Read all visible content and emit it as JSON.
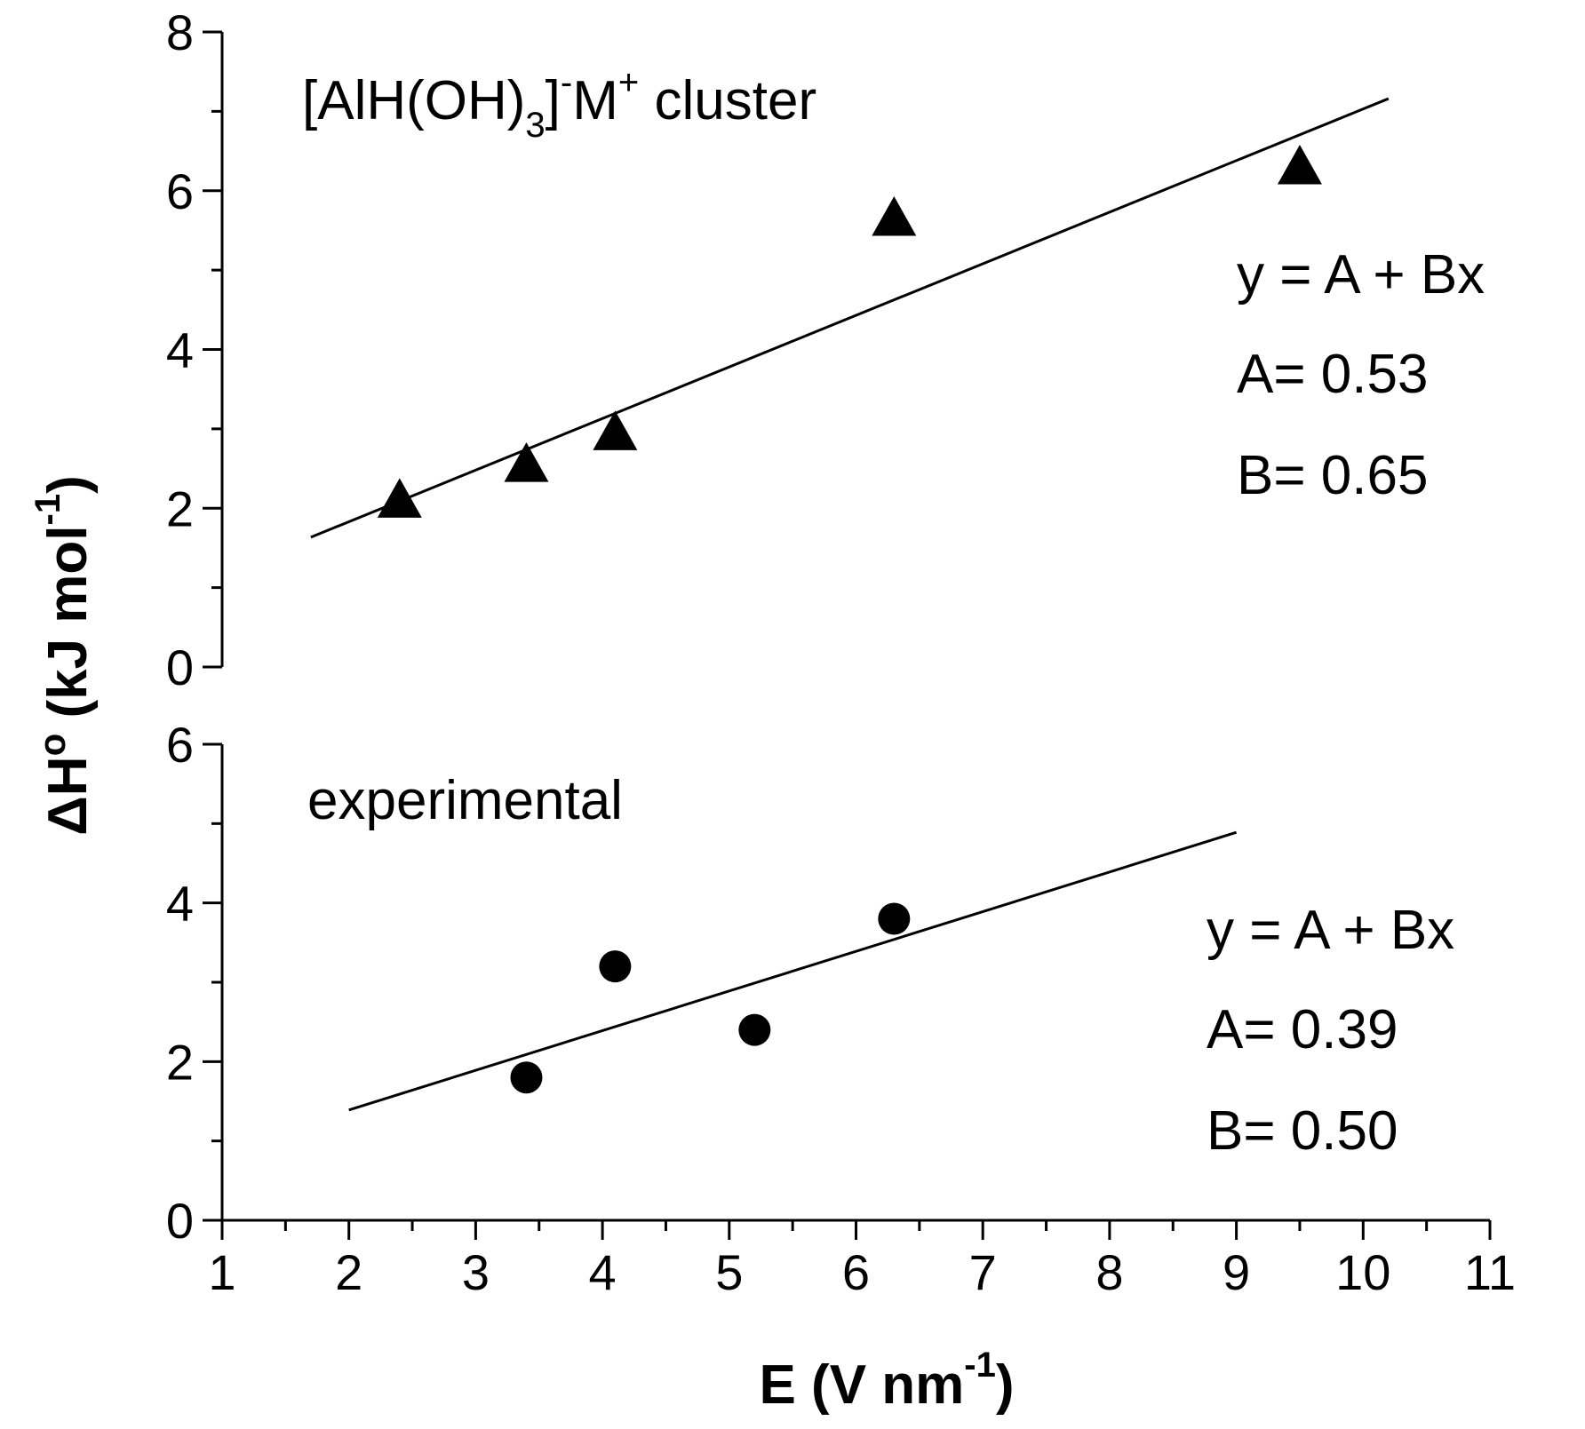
{
  "chart_data": [
    {
      "type": "scatter",
      "panel": "top",
      "title_parts": {
        "pre": "[AlH(OH)",
        "sub": "3",
        "mid": "]",
        "sup1": "-",
        "m": "M",
        "sup2": "+",
        "post": " cluster"
      },
      "xlabel": "",
      "ylabel": "",
      "xlim": [
        1,
        11
      ],
      "ylim": [
        0,
        8
      ],
      "y_ticks": [
        "0",
        "2",
        "4",
        "6",
        "8"
      ],
      "x": [
        2.4,
        3.4,
        4.1,
        6.3,
        9.5
      ],
      "y": [
        2.1,
        2.55,
        2.95,
        5.65,
        6.3
      ],
      "marker": "triangle",
      "fit": {
        "x_range": [
          1.7,
          10.2
        ],
        "intercept": 0.53,
        "slope": 0.65,
        "equation": "y = A + Bx",
        "A_label": "A= 0.53",
        "B_label": "B= 0.65"
      }
    },
    {
      "type": "scatter",
      "panel": "bottom",
      "title": "experimental",
      "xlabel": "",
      "ylabel": "",
      "xlim": [
        1,
        11
      ],
      "ylim": [
        0,
        6
      ],
      "y_ticks": [
        "0",
        "2",
        "4",
        "6"
      ],
      "x": [
        3.4,
        4.1,
        5.2,
        6.3
      ],
      "y": [
        1.8,
        3.2,
        2.4,
        3.8
      ],
      "marker": "circle",
      "fit": {
        "x_range": [
          2.0,
          9.0
        ],
        "intercept": 0.39,
        "slope": 0.5,
        "equation": "y = A + Bx",
        "A_label": "A= 0.39",
        "B_label": "B= 0.50"
      }
    }
  ],
  "axes": {
    "x_ticks": [
      "1",
      "2",
      "3",
      "4",
      "5",
      "6",
      "7",
      "8",
      "9",
      "10",
      "11"
    ],
    "xlabel_parts": {
      "pre": "E (V nm",
      "sup": "-1",
      "post": ")"
    },
    "ylabel_parts": {
      "pre": "ΔH",
      "deg": "o",
      "mid": " (kJ mol",
      "sup": "-1",
      "post": ")"
    }
  },
  "colors": {
    "ink": "#000000",
    "background": "#ffffff"
  }
}
